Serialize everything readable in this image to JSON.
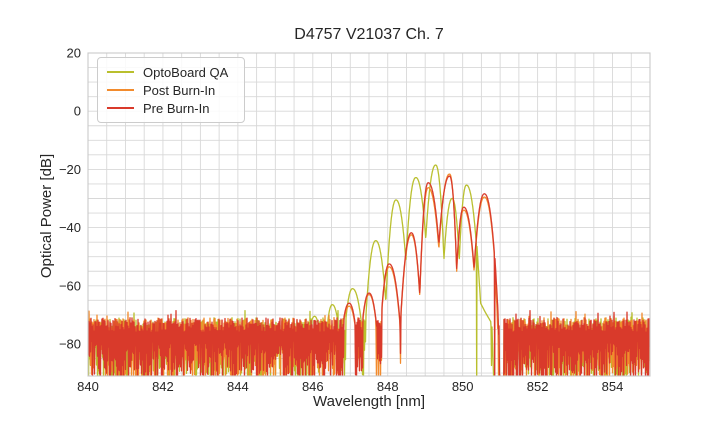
{
  "chart_data": {
    "type": "line",
    "title": "D4757 V21037 Ch. 7",
    "xlabel": "Wavelength [nm]",
    "ylabel": "Optical Power [dB]",
    "xlim": [
      840,
      855
    ],
    "ylim": [
      -91,
      20
    ],
    "x_ticks": [
      840,
      842,
      844,
      846,
      848,
      850,
      852,
      854
    ],
    "y_ticks": [
      20,
      0,
      -20,
      -40,
      -60,
      -80
    ],
    "minor_x_step": 0.5,
    "minor_y_step": 5,
    "grid": "both",
    "grid_color": "#d8d8d8",
    "spine_color": "#c9c9c9",
    "text_color": "#262626",
    "legend": {
      "position": "upper left"
    },
    "noise_floor": {
      "description": "broadband noise floor left of 846.9 nm and right of 851.1 nm",
      "top_db": -71,
      "top_jitter_db": 5,
      "bottom_db": -94
    },
    "curve_model": {
      "valley_drop_db": 21,
      "peak_shape_exponent": 2.2,
      "half_mode_spacing_nm": 0.27,
      "noise_threshold_db": -72
    },
    "series": [
      {
        "name": "OptoBoard QA",
        "color": "#b9bf2d",
        "seed": 7,
        "modes": [
          [
            846.05,
            -70.5
          ],
          [
            846.52,
            -66.5
          ],
          [
            847.06,
            -61.0
          ],
          [
            847.68,
            -44.5
          ],
          [
            848.22,
            -30.5
          ],
          [
            848.75,
            -22.8
          ],
          [
            849.28,
            -18.5
          ],
          [
            849.72,
            -30.0
          ],
          [
            850.1,
            -25.4
          ]
        ],
        "tail": [
          [
            850.38,
            -46
          ],
          [
            850.48,
            -66
          ],
          [
            850.6,
            -69
          ],
          [
            850.78,
            -73
          ],
          [
            850.84,
            -97
          ]
        ],
        "gap": [
          850.78,
          851.1
        ]
      },
      {
        "name": "Post Burn-In",
        "color": "#f28b2d",
        "seed": 13,
        "modes": [
          [
            846.97,
            -67.0
          ],
          [
            847.5,
            -63.0
          ],
          [
            848.04,
            -53.5
          ],
          [
            848.63,
            -42.5
          ],
          [
            849.08,
            -26.3
          ],
          [
            849.65,
            -21.6
          ],
          [
            850.03,
            -34.0
          ],
          [
            850.58,
            -29.5
          ]
        ],
        "tail": [
          [
            850.85,
            -51
          ],
          [
            850.92,
            -69
          ],
          [
            850.99,
            -97
          ]
        ],
        "gap": [
          850.95,
          851.12
        ]
      },
      {
        "name": "Pre Burn-In",
        "color": "#d93a2b",
        "seed": 29,
        "modes": [
          [
            846.97,
            -66.0
          ],
          [
            847.5,
            -62.5
          ],
          [
            848.04,
            -52.5
          ],
          [
            848.63,
            -41.8
          ],
          [
            849.08,
            -24.6
          ],
          [
            849.65,
            -22.3
          ],
          [
            850.03,
            -33.0
          ],
          [
            850.58,
            -28.4
          ]
        ],
        "tail": [
          [
            850.86,
            -50
          ],
          [
            850.94,
            -68
          ],
          [
            851.01,
            -97
          ]
        ],
        "gap": [
          850.97,
          851.08
        ]
      }
    ]
  }
}
